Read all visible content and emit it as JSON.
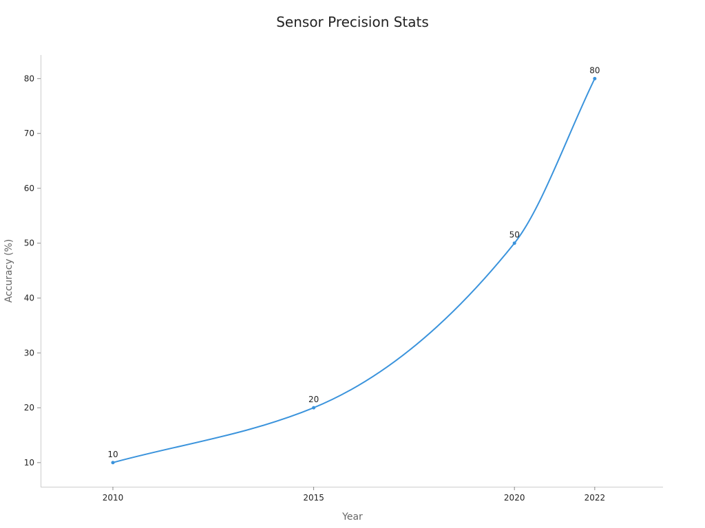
{
  "chart_data": {
    "type": "line",
    "title": "Sensor Precision Stats",
    "xlabel": "Year",
    "ylabel": "Accuracy (%)",
    "x": [
      "2010",
      "2015",
      "2020",
      "2022"
    ],
    "values": [
      10,
      20,
      50,
      80
    ],
    "data_labels": [
      "10",
      "20",
      "50",
      "80"
    ],
    "ylim": [
      5.6,
      84.3
    ],
    "y_ticks": [
      "10",
      "20",
      "30",
      "40",
      "50",
      "60",
      "70",
      "80"
    ],
    "grid": false,
    "line_style": "smooth",
    "colors": {
      "series": "#3a93dc",
      "axis": "#cccccc",
      "text": "#222222",
      "axis_title": "#666666"
    }
  }
}
